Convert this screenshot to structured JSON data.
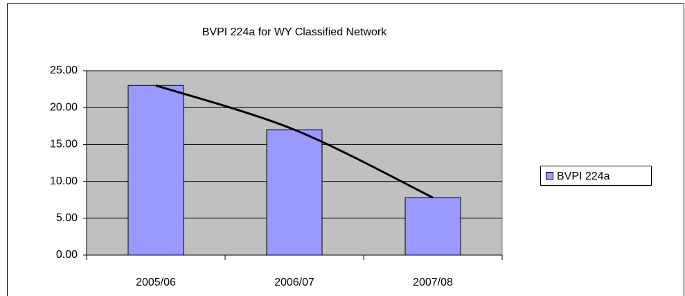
{
  "chart_data": {
    "type": "bar",
    "title": "BVPI 224a for WY Classified Network",
    "categories": [
      "2005/06",
      "2006/07",
      "2007/08"
    ],
    "series": [
      {
        "name": "BVPI 224a",
        "color": "#9999ff",
        "values": [
          23.0,
          17.0,
          7.8
        ]
      }
    ],
    "trendline": true,
    "ylim": [
      0,
      25
    ],
    "yticks": [
      {
        "value": 0,
        "label": "0.00"
      },
      {
        "value": 5,
        "label": "5.00"
      },
      {
        "value": 10,
        "label": "10.00"
      },
      {
        "value": 15,
        "label": "15.00"
      },
      {
        "value": 20,
        "label": "20.00"
      },
      {
        "value": 25,
        "label": "25.00"
      }
    ],
    "grid": true,
    "plot_background": "#c0c0c0",
    "legend": "right"
  }
}
